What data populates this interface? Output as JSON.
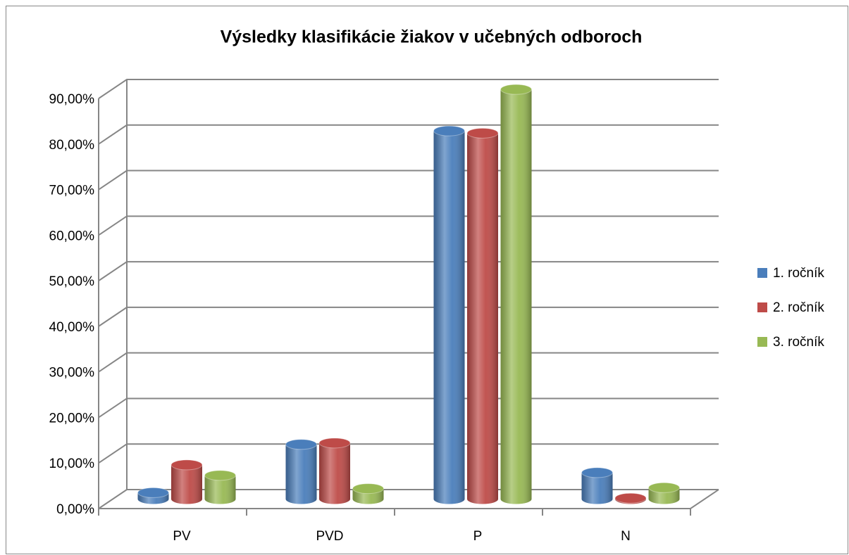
{
  "chart_data": {
    "type": "bar3d",
    "title": "Výsledky klasifikácie žiakov v učebných odboroch",
    "categories": [
      "PV",
      "PVD",
      "P",
      "N"
    ],
    "series": [
      {
        "name": "1. ročník",
        "color": "#4a7ebb",
        "values": [
          1.4,
          12.0,
          80.8,
          5.8
        ]
      },
      {
        "name": "2. ročník",
        "color": "#be4b48",
        "values": [
          7.5,
          12.3,
          80.3,
          0.2
        ]
      },
      {
        "name": "3. ročník",
        "color": "#98b954",
        "values": [
          5.2,
          2.3,
          89.9,
          2.5
        ]
      }
    ],
    "ylim": [
      0,
      90
    ],
    "yticks": [
      {
        "value": 0,
        "label": "0,00%"
      },
      {
        "value": 10,
        "label": "10,00%"
      },
      {
        "value": 20,
        "label": "20,00%"
      },
      {
        "value": 30,
        "label": "30,00%"
      },
      {
        "value": 40,
        "label": "40,00%"
      },
      {
        "value": 50,
        "label": "50,00%"
      },
      {
        "value": 60,
        "label": "60,00%"
      },
      {
        "value": 70,
        "label": "70,00%"
      },
      {
        "value": 80,
        "label": "80,00%"
      },
      {
        "value": 90,
        "label": "90,00%"
      }
    ],
    "grid": true,
    "legend": "right"
  }
}
